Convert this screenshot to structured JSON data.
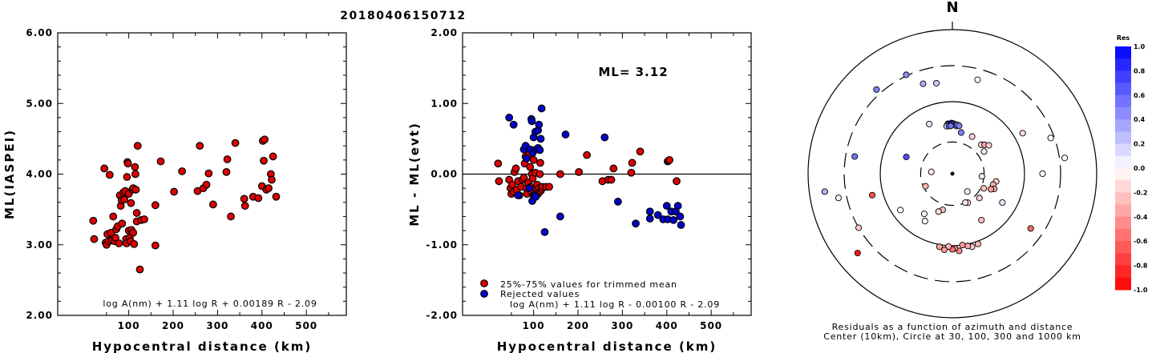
{
  "title": "20180406150712",
  "chart_data": [
    {
      "type": "scatter",
      "ylabel": "ML(IASPEI)",
      "xlabel": "Hypocentral distance (km)",
      "xlim": [
        -60,
        590
      ],
      "ylim": [
        2.0,
        6.0
      ],
      "xticks": [
        "100",
        "200",
        "300",
        "400",
        "500"
      ],
      "yticks": [
        "2.00",
        "3.00",
        "4.00",
        "5.00",
        "6.00"
      ],
      "formula": "log A(nm) + 1.11 log R + 0.00189 R - 2.09",
      "grid": false,
      "points": [
        [
          20,
          3.34
        ],
        [
          22,
          3.08
        ],
        [
          45,
          4.08
        ],
        [
          48,
          3.03
        ],
        [
          50,
          3.0
        ],
        [
          52,
          3.15
        ],
        [
          55,
          3.05
        ],
        [
          57,
          3.99
        ],
        [
          60,
          3.17
        ],
        [
          62,
          3.06
        ],
        [
          65,
          3.4
        ],
        [
          68,
          3.05
        ],
        [
          70,
          3.1
        ],
        [
          72,
          3.22
        ],
        [
          75,
          3.26
        ],
        [
          78,
          3.02
        ],
        [
          80,
          3.7
        ],
        [
          82,
          3.55
        ],
        [
          84,
          3.63
        ],
        [
          85,
          3.3
        ],
        [
          88,
          3.74
        ],
        [
          90,
          3.64
        ],
        [
          92,
          3.76
        ],
        [
          94,
          3.08
        ],
        [
          95,
          3.02
        ],
        [
          96,
          3.96
        ],
        [
          97,
          4.17
        ],
        [
          98,
          4.15
        ],
        [
          100,
          3.2
        ],
        [
          100,
          3.72
        ],
        [
          102,
          3.1
        ],
        [
          104,
          3.05
        ],
        [
          105,
          3.59
        ],
        [
          106,
          3.21
        ],
        [
          108,
          3.78
        ],
        [
          110,
          3.8
        ],
        [
          110,
          3.17
        ],
        [
          112,
          3.01
        ],
        [
          114,
          4.1
        ],
        [
          115,
          4.0
        ],
        [
          116,
          3.78
        ],
        [
          118,
          3.33
        ],
        [
          118,
          3.45
        ],
        [
          120,
          4.4
        ],
        [
          125,
          2.65
        ],
        [
          128,
          3.35
        ],
        [
          135,
          3.36
        ],
        [
          160,
          3.56
        ],
        [
          160,
          2.99
        ],
        [
          172,
          4.18
        ],
        [
          202,
          3.75
        ],
        [
          220,
          4.04
        ],
        [
          255,
          3.76
        ],
        [
          260,
          4.4
        ],
        [
          268,
          3.8
        ],
        [
          275,
          3.85
        ],
        [
          280,
          4.01
        ],
        [
          290,
          3.57
        ],
        [
          320,
          4.03
        ],
        [
          322,
          4.21
        ],
        [
          330,
          3.4
        ],
        [
          340,
          4.44
        ],
        [
          360,
          3.65
        ],
        [
          362,
          3.55
        ],
        [
          380,
          3.68
        ],
        [
          392,
          3.66
        ],
        [
          400,
          3.83
        ],
        [
          402,
          4.47
        ],
        [
          404,
          4.19
        ],
        [
          406,
          4.49
        ],
        [
          410,
          3.78
        ],
        [
          415,
          3.8
        ],
        [
          420,
          4.0
        ],
        [
          422,
          3.92
        ],
        [
          425,
          4.25
        ],
        [
          432,
          3.68
        ]
      ]
    },
    {
      "type": "scatter",
      "ylabel": "ML - ML(evt)",
      "xlabel": "Hypocentral distance (km)",
      "xlim": [
        -60,
        590
      ],
      "ylim": [
        -2.0,
        2.0
      ],
      "xticks": [
        "100",
        "200",
        "300",
        "400",
        "500"
      ],
      "yticks": [
        "-2.00",
        "-1.00",
        "0.00",
        "1.00",
        "2.00"
      ],
      "ml_label": "ML= 3.12",
      "formula": "log A(nm) + 1.11 log R - 0.00100 R - 2.09",
      "legend": [
        "25%-75% values for trimmed mean",
        "Rejected values"
      ],
      "series_colors": {
        "trimmed": "#dd0000",
        "rejected": "#0000cc"
      },
      "trimmed": [
        [
          20,
          0.15
        ],
        [
          22,
          -0.1
        ],
        [
          45,
          -0.08
        ],
        [
          48,
          -0.2
        ],
        [
          50,
          -0.28
        ],
        [
          52,
          -0.15
        ],
        [
          55,
          -0.25
        ],
        [
          57,
          0.03
        ],
        [
          60,
          0.08
        ],
        [
          62,
          -0.22
        ],
        [
          65,
          -0.1
        ],
        [
          68,
          -0.3
        ],
        [
          72,
          -0.18
        ],
        [
          75,
          -0.08
        ],
        [
          78,
          -0.05
        ],
        [
          80,
          0.15
        ],
        [
          82,
          0.25
        ],
        [
          84,
          -0.2
        ],
        [
          85,
          -0.28
        ],
        [
          88,
          -0.12
        ],
        [
          90,
          0.28
        ],
        [
          92,
          0.1
        ],
        [
          94,
          -0.18
        ],
        [
          95,
          -0.25
        ],
        [
          96,
          0.0
        ],
        [
          98,
          -0.06
        ],
        [
          100,
          -0.3
        ],
        [
          100,
          0.2
        ],
        [
          104,
          0.02
        ],
        [
          106,
          -0.2
        ],
        [
          108,
          -0.15
        ],
        [
          110,
          -0.28
        ],
        [
          112,
          -0.2
        ],
        [
          114,
          0.0
        ],
        [
          115,
          0.16
        ],
        [
          116,
          -0.24
        ],
        [
          118,
          -0.21
        ],
        [
          120,
          -0.18
        ],
        [
          128,
          -0.18
        ],
        [
          135,
          -0.18
        ],
        [
          160,
          0.0
        ],
        [
          202,
          0.03
        ],
        [
          220,
          0.27
        ],
        [
          255,
          -0.1
        ],
        [
          268,
          -0.08
        ],
        [
          275,
          -0.08
        ],
        [
          280,
          0.08
        ],
        [
          320,
          0.02
        ],
        [
          322,
          0.16
        ],
        [
          340,
          0.32
        ],
        [
          402,
          0.18
        ],
        [
          404,
          0.19
        ],
        [
          406,
          0.2
        ],
        [
          422,
          -0.1
        ]
      ],
      "rejected": [
        [
          45,
          0.8
        ],
        [
          55,
          0.7
        ],
        [
          65,
          -0.3
        ],
        [
          78,
          0.35
        ],
        [
          82,
          0.4
        ],
        [
          84,
          0.22
        ],
        [
          90,
          -0.2
        ],
        [
          92,
          0.35
        ],
        [
          95,
          0.78
        ],
        [
          96,
          0.75
        ],
        [
          97,
          -0.38
        ],
        [
          98,
          0.3
        ],
        [
          100,
          0.52
        ],
        [
          102,
          -0.3
        ],
        [
          104,
          0.6
        ],
        [
          105,
          -0.32
        ],
        [
          106,
          0.35
        ],
        [
          110,
          0.62
        ],
        [
          110,
          0.37
        ],
        [
          112,
          0.7
        ],
        [
          114,
          0.34
        ],
        [
          116,
          0.5
        ],
        [
          118,
          0.93
        ],
        [
          125,
          -0.82
        ],
        [
          160,
          -0.6
        ],
        [
          172,
          0.56
        ],
        [
          260,
          0.52
        ],
        [
          290,
          -0.39
        ],
        [
          330,
          -0.7
        ],
        [
          362,
          -0.53
        ],
        [
          362,
          -0.63
        ],
        [
          380,
          -0.58
        ],
        [
          392,
          -0.64
        ],
        [
          400,
          -0.45
        ],
        [
          402,
          -0.64
        ],
        [
          410,
          -0.53
        ],
        [
          415,
          -0.65
        ],
        [
          420,
          -0.53
        ],
        [
          425,
          -0.45
        ],
        [
          430,
          -0.6
        ],
        [
          432,
          -0.72
        ]
      ]
    },
    {
      "type": "scatter",
      "subtype": "polar",
      "north_label": "N",
      "caption_line1": "Residuals as a function of azimuth and distance",
      "caption_line2": "Center (10km), Circle at 30, 100, 300 and 1000 km",
      "colorbar_title": "Res",
      "colorbar_ticks": [
        "1.0",
        "0.8",
        "0.6",
        "0.4",
        "0.2",
        "0.0",
        "-0.2",
        "-0.4",
        "-0.6",
        "-0.8",
        "-1.0"
      ],
      "colorbar_range": [
        -1.0,
        1.0
      ],
      "colors": {
        "positive": "#0000ff",
        "negative": "#ff0000",
        "zero": "#ffffff"
      },
      "points": [
        {
          "az": -18,
          "d": 225,
          "res": 0.32
        },
        {
          "az": -10,
          "d": 210,
          "res": 0.22
        },
        {
          "az": 15,
          "d": 240,
          "res": 0.0
        },
        {
          "az": -5,
          "d": 62,
          "res": 0.95
        },
        {
          "az": -3,
          "d": 61,
          "res": 0.9
        },
        {
          "az": -1,
          "d": 63,
          "res": 0.85
        },
        {
          "az": 0,
          "d": 60,
          "res": 0.8
        },
        {
          "az": 1,
          "d": 62,
          "res": 0.75
        },
        {
          "az": 2,
          "d": 60,
          "res": 0.7
        },
        {
          "az": 3,
          "d": 61,
          "res": 0.6
        },
        {
          "az": 4,
          "d": 59,
          "res": 0.5
        },
        {
          "az": 5,
          "d": 58,
          "res": 0.4
        },
        {
          "az": 6,
          "d": 60,
          "res": 0.35
        },
        {
          "az": -6,
          "d": 60,
          "res": 0.3
        },
        {
          "az": -7,
          "d": 58,
          "res": 0.25
        },
        {
          "az": -4,
          "d": 58,
          "res": 0.45
        },
        {
          "az": -2,
          "d": 58,
          "res": 0.55
        },
        {
          "az": 8,
          "d": 59,
          "res": 0.5
        },
        {
          "az": -25,
          "d": 70,
          "res": 0.1
        },
        {
          "az": 12,
          "d": 48,
          "res": 0.5
        },
        {
          "az": 28,
          "d": 48,
          "res": -0.2
        },
        {
          "az": 45,
          "d": 46,
          "res": -0.15
        },
        {
          "az": 48,
          "d": 50,
          "res": -0.35
        },
        {
          "az": 52,
          "d": 55,
          "res": -0.2
        },
        {
          "az": 55,
          "d": 42,
          "res": -0.1
        },
        {
          "az": 60,
          "d": 150,
          "res": -0.15
        },
        {
          "az": 70,
          "d": 280,
          "res": 0.0
        },
        {
          "az": 82,
          "d": 400,
          "res": 0.0
        },
        {
          "az": 90,
          "d": 200,
          "res": 0.0
        },
        {
          "az": 95,
          "d": 28,
          "res": -0.1
        },
        {
          "az": 100,
          "d": 52,
          "res": -0.2
        },
        {
          "az": 105,
          "d": 48,
          "res": -0.3
        },
        {
          "az": 110,
          "d": 52,
          "res": -0.35
        },
        {
          "az": 112,
          "d": 47,
          "res": -0.4
        },
        {
          "az": 115,
          "d": 35,
          "res": -0.25
        },
        {
          "az": 120,
          "d": 75,
          "res": 0.1
        },
        {
          "az": 125,
          "d": 230,
          "res": -0.6
        },
        {
          "az": 132,
          "d": 38,
          "res": -0.2
        },
        {
          "az": 140,
          "d": 22,
          "res": -0.05
        },
        {
          "az": 148,
          "d": 70,
          "res": -0.25
        },
        {
          "az": 152,
          "d": 32,
          "res": -0.15
        },
        {
          "az": 156,
          "d": 30,
          "res": -0.1
        },
        {
          "az": 160,
          "d": 115,
          "res": -0.3
        },
        {
          "az": 165,
          "d": 120,
          "res": -0.2
        },
        {
          "az": 168,
          "d": 110,
          "res": -0.35
        },
        {
          "az": 172,
          "d": 100,
          "res": -0.4
        },
        {
          "az": 175,
          "d": 130,
          "res": -0.45
        },
        {
          "az": 178,
          "d": 115,
          "res": -0.5
        },
        {
          "az": 180,
          "d": 120,
          "res": -0.55
        },
        {
          "az": 183,
          "d": 105,
          "res": -0.3
        },
        {
          "az": 186,
          "d": 125,
          "res": -0.4
        },
        {
          "az": 190,
          "d": 112,
          "res": -0.35
        },
        {
          "az": 195,
          "d": 40,
          "res": -0.25
        },
        {
          "az": 200,
          "d": 45,
          "res": -0.15
        },
        {
          "az": 210,
          "d": 70,
          "res": 0.0
        },
        {
          "az": 215,
          "d": 60,
          "res": -0.05
        },
        {
          "az": 230,
          "d": 600,
          "res": -0.9
        },
        {
          "az": 235,
          "d": 85,
          "res": 0.0
        },
        {
          "az": 240,
          "d": 300,
          "res": -0.2
        },
        {
          "az": 245,
          "d": 28,
          "res": -0.3
        },
        {
          "az": 255,
          "d": 160,
          "res": -0.7
        },
        {
          "az": 258,
          "d": 460,
          "res": 0.05
        },
        {
          "az": 262,
          "d": 700,
          "res": 0.3
        },
        {
          "az": 275,
          "d": 20,
          "res": -0.1
        },
        {
          "az": 280,
          "d": 250,
          "res": 0.55
        },
        {
          "az": 290,
          "d": 60,
          "res": 0.7
        },
        {
          "az": 318,
          "d": 400,
          "res": 0.5
        },
        {
          "az": 335,
          "d": 320,
          "res": 0.45
        }
      ]
    }
  ]
}
